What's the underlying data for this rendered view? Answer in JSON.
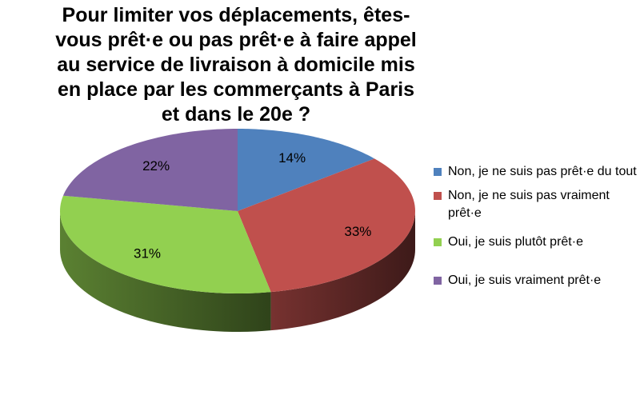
{
  "chart_data": {
    "type": "pie",
    "title": "Pour limiter vos déplacements, êtes-vous prêt·e ou pas prêt·e à faire appel au service de livraison à domicile mis en place par les commerçants à Paris et dans le 20e ?",
    "three_d": true,
    "legend_position": "right",
    "slices": [
      {
        "label": "Non, je ne suis pas prêt·e du tout",
        "value": 14,
        "display": "14%",
        "color": "#4F81BD"
      },
      {
        "label": "Non, je ne suis pas vraiment prêt·e",
        "value": 33,
        "display": "33%",
        "color": "#C0504D"
      },
      {
        "label": "Oui, je suis plutôt prêt·e",
        "value": 31,
        "display": "31%",
        "color": "#92D050"
      },
      {
        "label": "Oui, je suis vraiment prêt·e",
        "value": 22,
        "display": "22%",
        "color": "#8064A2"
      }
    ]
  }
}
